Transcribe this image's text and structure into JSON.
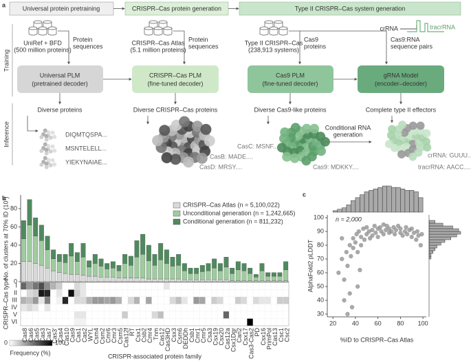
{
  "panel_labels": [
    "a",
    "b",
    "c"
  ],
  "diagram": {
    "stages": [
      "Universal protein pretraining",
      "CRISPR–Cas protein generation",
      "Type II CRISPR–Cas system generation"
    ],
    "rows": [
      "Training",
      "Inference"
    ],
    "databases": [
      [
        "UniRef + BFD",
        "(500 million proteins)"
      ],
      [
        "CRISPR–Cas Atlas",
        "(5.1 million proteins)"
      ],
      [
        "Type II CRISPR–Cas",
        "(238,913 systems)"
      ]
    ],
    "inputs": [
      [
        "Protein",
        "sequences"
      ],
      [
        "Protein",
        "sequences"
      ],
      [
        "Cas9",
        "proteins"
      ],
      [
        "Cas9:RNA",
        "sequence pairs"
      ]
    ],
    "rna_labels": [
      "crRNA",
      "tracrRNA"
    ],
    "models": [
      [
        "Universal PLM",
        "(pretrained decoder)"
      ],
      [
        "CRISPR–Cas PLM",
        "(fine-tuned decoder)"
      ],
      [
        "Cas9 PLM",
        "(fine-tuned decoder)"
      ],
      [
        "gRNA Model",
        "(encoder–decoder)"
      ]
    ],
    "outputs": [
      "Diverse proteins",
      "Diverse CRISPR–Cas proteins",
      "Diverse Cas9-like proteins",
      "Complete type II effectors"
    ],
    "rna_step": [
      "Conditional RNA",
      "generation"
    ],
    "sequences": [
      [
        "DIQMTQSPA...",
        "MSNTELELL...",
        "YIEKYNAIAE..."
      ],
      [
        "CasC: MSNF....",
        "CasB: MADE....",
        "CasD: MRSY...."
      ],
      [
        "Cas9: MDKKY...."
      ],
      [
        "crRNA: GUUU....",
        "tracrRNA: AACC...."
      ]
    ]
  },
  "chart_data": [
    {
      "type": "stacked_bar",
      "ylabel": "No. of clusters at 70% ID (10³)",
      "xlabel": "CRISPR-associated protein family",
      "categories": [
        "Cas8",
        "Cas6",
        "Cas5",
        "Cas3",
        "Cas7",
        "Cas3'",
        "Cas4",
        "Cas10",
        "Cas9",
        "Cas1",
        "Cas2",
        "WYL",
        "Csm4",
        "Csm2",
        "Cmr6",
        "Cmr3",
        "Csm5",
        "Cas12f",
        "RT",
        "Csx1",
        "Csb2",
        "Cmr4",
        "Tnm",
        "Cas12",
        "Cas3HD",
        "Csx3",
        "Csm6",
        "DEDDh",
        "Csb1",
        "Cmr1",
        "Cmr5",
        "Csa3",
        "Csx19",
        "Csx20",
        "Cas12a",
        "Csx1Dgr",
        "Can2",
        "Csx17",
        "Cas3-Cas2",
        "PD",
        "Csx16",
        "PrimPol",
        "Cas13",
        "Csc1",
        "Csc2"
      ],
      "series": [
        {
          "name": "CRISPR–Cas Atlas (n = 5,100,022)",
          "color": "#d9d9d9",
          "values": [
            22,
            22,
            20,
            18,
            15,
            12,
            10,
            9,
            8,
            8,
            7,
            6,
            6,
            5,
            5,
            5,
            4,
            4,
            4,
            4,
            4,
            3,
            3,
            3,
            3,
            3,
            3,
            2,
            2,
            2,
            2,
            2,
            2,
            2,
            2,
            1,
            1,
            1,
            1,
            1,
            1,
            1,
            1,
            1,
            1
          ]
        },
        {
          "name": "Unconditional generation (n = 1,242,665)",
          "color": "#9fcc9f",
          "values": [
            25,
            40,
            30,
            27,
            20,
            13,
            12,
            12,
            20,
            14,
            20,
            10,
            14,
            12,
            9,
            10,
            8,
            16,
            14,
            23,
            26,
            20,
            15,
            21,
            17,
            14,
            15,
            10,
            7,
            7,
            9,
            10,
            13,
            10,
            14,
            8,
            12,
            11,
            8,
            4,
            11,
            5,
            5,
            5,
            12
          ]
        },
        {
          "name": "Conditional generation (n = 811,232)",
          "color": "#4f8a5e",
          "values": [
            20,
            28,
            20,
            17,
            15,
            10,
            8,
            9,
            14,
            10,
            15,
            7,
            10,
            8,
            6,
            7,
            6,
            10,
            10,
            18,
            22,
            17,
            12,
            18,
            15,
            10,
            12,
            8,
            6,
            6,
            7,
            8,
            10,
            8,
            11,
            6,
            9,
            8,
            6,
            3,
            8,
            4,
            4,
            4,
            9
          ]
        }
      ],
      "ylim": [
        0,
        95
      ],
      "yticks": [
        0,
        20,
        40,
        60,
        80
      ],
      "heatmap": {
        "ylabel": "CRISPR–Cas type",
        "rows": [
          "I",
          "II",
          "III",
          "IV",
          "V",
          "VI"
        ],
        "values": [
          [
            60,
            40,
            55,
            70,
            45,
            30,
            20,
            0,
            0,
            15,
            10,
            0,
            0,
            0,
            0,
            0,
            0,
            0,
            0,
            0,
            0,
            0,
            0,
            0,
            10,
            0,
            0,
            0,
            0,
            0,
            0,
            0,
            0,
            0,
            0,
            0,
            0,
            0,
            0,
            0,
            0,
            0,
            0,
            0,
            0
          ],
          [
            0,
            15,
            20,
            90,
            85,
            0,
            10,
            0,
            95,
            20,
            10,
            0,
            0,
            0,
            0,
            0,
            0,
            0,
            0,
            0,
            0,
            0,
            0,
            0,
            0,
            0,
            0,
            0,
            0,
            0,
            0,
            0,
            0,
            0,
            0,
            0,
            0,
            0,
            0,
            0,
            0,
            0,
            0,
            0,
            0
          ],
          [
            30,
            25,
            40,
            10,
            50,
            0,
            5,
            85,
            0,
            15,
            15,
            30,
            40,
            40,
            35,
            40,
            30,
            0,
            15,
            30,
            0,
            35,
            0,
            0,
            0,
            15,
            25,
            10,
            0,
            40,
            35,
            0,
            20,
            15,
            0,
            0,
            20,
            15,
            0,
            15,
            10,
            10,
            0,
            20,
            20
          ],
          [
            10,
            15,
            10,
            0,
            10,
            0,
            0,
            0,
            0,
            0,
            0,
            0,
            0,
            0,
            0,
            0,
            0,
            0,
            0,
            0,
            0,
            0,
            0,
            0,
            0,
            0,
            0,
            0,
            0,
            0,
            0,
            0,
            0,
            0,
            0,
            0,
            0,
            0,
            0,
            0,
            0,
            0,
            0,
            0,
            0
          ],
          [
            0,
            0,
            0,
            0,
            0,
            0,
            0,
            0,
            0,
            10,
            10,
            0,
            0,
            0,
            0,
            0,
            0,
            20,
            0,
            0,
            0,
            0,
            15,
            25,
            0,
            0,
            0,
            0,
            0,
            0,
            0,
            0,
            0,
            0,
            60,
            0,
            0,
            0,
            0,
            0,
            0,
            0,
            0,
            0,
            0
          ],
          [
            0,
            0,
            0,
            0,
            0,
            0,
            0,
            0,
            0,
            5,
            5,
            0,
            0,
            0,
            0,
            0,
            0,
            0,
            0,
            0,
            0,
            0,
            0,
            0,
            0,
            0,
            0,
            0,
            0,
            0,
            0,
            0,
            0,
            0,
            0,
            0,
            0,
            0,
            100,
            0,
            0,
            0,
            0,
            0,
            0
          ]
        ],
        "colorbar": {
          "label": "Frequency (%)",
          "range": [
            0,
            100
          ],
          "ticks": [
            0,
            100
          ]
        }
      }
    },
    {
      "type": "scatter",
      "annotation": "n = 2,000",
      "xlabel": "%ID to CRISPR–Cas Atlas",
      "ylabel": "AlphaFold2 pLDDT",
      "color": "#8c8c8c",
      "x": [
        25,
        28,
        30,
        32,
        33,
        35,
        36,
        38,
        38,
        40,
        41,
        42,
        43,
        45,
        45,
        47,
        48,
        50,
        50,
        52,
        53,
        55,
        55,
        57,
        58,
        60,
        60,
        62,
        63,
        65,
        65,
        67,
        68,
        70,
        70,
        72,
        74,
        75,
        76,
        78,
        80,
        80,
        82,
        84,
        85,
        86,
        88,
        90,
        90,
        92,
        94,
        95,
        96,
        98,
        99,
        30,
        35,
        37,
        42,
        28,
        44,
        33
      ],
      "y": [
        60,
        70,
        55,
        75,
        65,
        80,
        72,
        85,
        78,
        82,
        88,
        75,
        90,
        86,
        80,
        92,
        84,
        88,
        93,
        90,
        85,
        91,
        87,
        94,
        89,
        92,
        86,
        93,
        90,
        95,
        88,
        91,
        94,
        89,
        92,
        90,
        93,
        88,
        91,
        94,
        89,
        92,
        87,
        90,
        93,
        88,
        91,
        86,
        92,
        89,
        84,
        90,
        87,
        80,
        88,
        40,
        45,
        35,
        50,
        85,
        62,
        30
      ],
      "xlim": [
        15,
        103
      ],
      "ylim": [
        28,
        102
      ],
      "xticks": [
        20,
        40,
        60,
        80,
        100
      ],
      "yticks": [
        30,
        40,
        50,
        60,
        70,
        80,
        90,
        100
      ],
      "top_histogram": {
        "bins": [
          20,
          24,
          28,
          32,
          36,
          40,
          44,
          48,
          52,
          56,
          60,
          64,
          68,
          72,
          76,
          80,
          84,
          88,
          92,
          96,
          100
        ],
        "counts": [
          1,
          2,
          3,
          5,
          8,
          10,
          12,
          14,
          15,
          16,
          17,
          18,
          18,
          17,
          17,
          16,
          15,
          15,
          14,
          10
        ]
      },
      "right_histogram": {
        "bins": [
          70,
          72,
          74,
          76,
          78,
          80,
          82,
          84,
          86,
          88,
          90,
          92,
          94,
          96,
          98
        ],
        "counts": [
          1,
          1,
          2,
          3,
          4,
          6,
          8,
          11,
          14,
          16,
          15,
          12,
          7,
          3
        ]
      }
    }
  ]
}
